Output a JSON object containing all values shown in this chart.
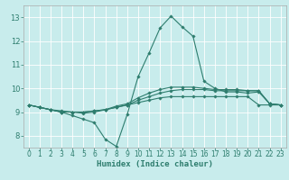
{
  "xlabel": "Humidex (Indice chaleur)",
  "xlim": [
    -0.5,
    23.5
  ],
  "ylim": [
    7.5,
    13.5
  ],
  "yticks": [
    8,
    9,
    10,
    11,
    12,
    13
  ],
  "xticks": [
    0,
    1,
    2,
    3,
    4,
    5,
    6,
    7,
    8,
    9,
    10,
    11,
    12,
    13,
    14,
    15,
    16,
    17,
    18,
    19,
    20,
    21,
    22,
    23
  ],
  "bg_color": "#c8ecec",
  "grid_color": "#ffffff",
  "line_color": "#2e7d6e",
  "lines": [
    [
      9.3,
      9.2,
      9.1,
      9.0,
      8.85,
      8.7,
      8.55,
      7.85,
      7.55,
      8.9,
      10.5,
      11.5,
      12.55,
      13.05,
      12.6,
      12.2,
      10.3,
      10.0,
      9.85,
      9.85,
      9.8,
      9.85,
      9.35,
      9.3
    ],
    [
      9.3,
      9.2,
      9.1,
      9.0,
      9.0,
      9.0,
      9.05,
      9.1,
      9.2,
      9.3,
      9.4,
      9.5,
      9.6,
      9.65,
      9.65,
      9.65,
      9.65,
      9.65,
      9.65,
      9.65,
      9.65,
      9.3,
      9.3,
      9.3
    ],
    [
      9.3,
      9.2,
      9.1,
      9.0,
      9.0,
      9.0,
      9.05,
      9.1,
      9.2,
      9.3,
      9.5,
      9.65,
      9.8,
      9.9,
      9.95,
      9.95,
      9.95,
      9.9,
      9.9,
      9.9,
      9.9,
      9.9,
      9.35,
      9.3
    ],
    [
      9.3,
      9.2,
      9.1,
      9.05,
      9.0,
      8.95,
      9.0,
      9.1,
      9.25,
      9.35,
      9.6,
      9.8,
      9.95,
      10.05,
      10.05,
      10.05,
      10.0,
      9.95,
      9.95,
      9.95,
      9.9,
      9.9,
      9.35,
      9.3
    ]
  ],
  "fig_width": 3.2,
  "fig_height": 2.0,
  "dpi": 100
}
